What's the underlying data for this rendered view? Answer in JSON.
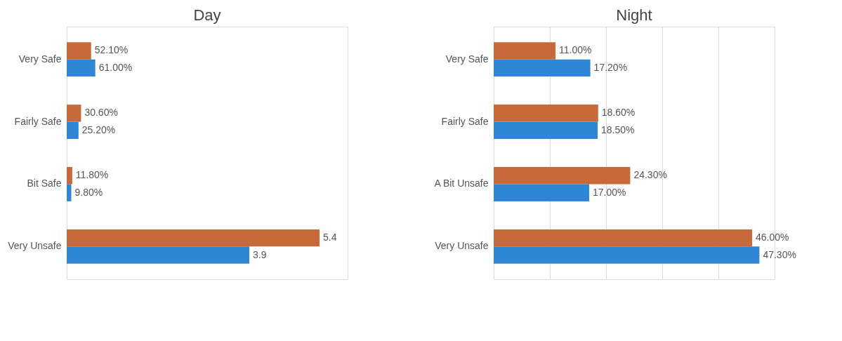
{
  "chart_data": [
    {
      "type": "bar",
      "title": "Day",
      "orientation": "horizontal",
      "categories": [
        "Very Safe",
        "Fairly Safe",
        "Bit Safe",
        "Very Unsafe"
      ],
      "xlim": [
        0,
        6
      ],
      "tick_labels": "y",
      "grid": false,
      "legend": false,
      "series": [
        {
          "color": "#c8693a",
          "values": [
            0.521,
            0.306,
            0.118,
            5.4
          ],
          "value_labels": [
            "52.10%",
            "30.60%",
            "11.80%",
            "5.4"
          ]
        },
        {
          "color": "#2f86d6",
          "values": [
            0.61,
            0.252,
            0.098,
            3.9
          ],
          "value_labels": [
            "61.00%",
            "25.20%",
            "9.80%",
            "3.9"
          ]
        }
      ]
    },
    {
      "type": "bar",
      "title": "Night",
      "orientation": "horizontal",
      "categories": [
        "Very Safe",
        "Fairly Safe",
        "A Bit Unsafe",
        "Very Unsafe"
      ],
      "xlim": [
        0,
        50
      ],
      "xticks": [
        {
          "value": 0,
          "label": null
        },
        {
          "value": 10,
          "label": null
        },
        {
          "value": 20,
          "label": null
        },
        {
          "value": 30,
          "label": null
        },
        {
          "value": 40,
          "label": null
        },
        {
          "value": 50,
          "label": null
        }
      ],
      "tick_labels": "y",
      "grid": "x",
      "legend": false,
      "series": [
        {
          "color": "#c8693a",
          "values": [
            11.0,
            18.6,
            24.3,
            46.0
          ],
          "value_labels": [
            "11.00%",
            "18.60%",
            "24.30%",
            "46.00%"
          ]
        },
        {
          "color": "#2f86d6",
          "values": [
            17.2,
            18.5,
            17.0,
            47.3
          ],
          "value_labels": [
            "17.20%",
            "18.50%",
            "17.00%",
            "47.30%"
          ]
        }
      ]
    }
  ]
}
